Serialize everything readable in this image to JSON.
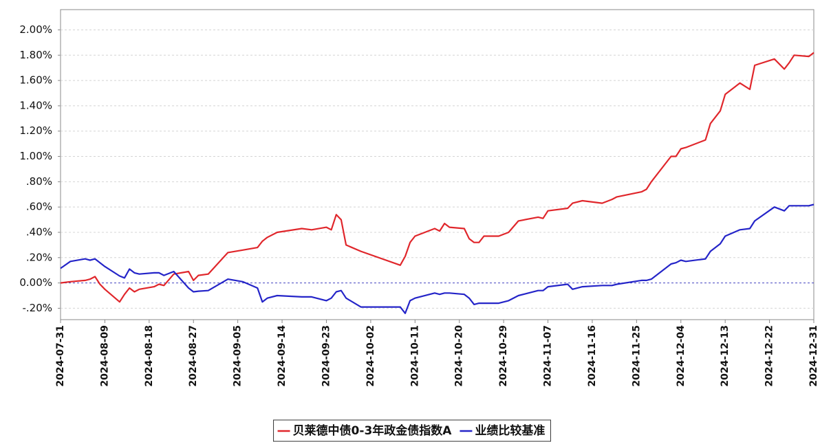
{
  "chart_data": {
    "type": "line",
    "x": [
      "2024-07-31",
      "2024-08-02",
      "2024-08-05",
      "2024-08-06",
      "2024-08-07",
      "2024-08-08",
      "2024-08-09",
      "2024-08-12",
      "2024-08-13",
      "2024-08-14",
      "2024-08-15",
      "2024-08-16",
      "2024-08-19",
      "2024-08-20",
      "2024-08-21",
      "2024-08-23",
      "2024-08-26",
      "2024-08-27",
      "2024-08-28",
      "2024-08-30",
      "2024-09-03",
      "2024-09-06",
      "2024-09-09",
      "2024-09-10",
      "2024-09-11",
      "2024-09-13",
      "2024-09-18",
      "2024-09-20",
      "2024-09-23",
      "2024-09-24",
      "2024-09-25",
      "2024-09-26",
      "2024-09-27",
      "2024-09-30",
      "2024-10-08",
      "2024-10-09",
      "2024-10-10",
      "2024-10-11",
      "2024-10-15",
      "2024-10-16",
      "2024-10-17",
      "2024-10-18",
      "2024-10-21",
      "2024-10-22",
      "2024-10-23",
      "2024-10-24",
      "2024-10-25",
      "2024-10-28",
      "2024-10-30",
      "2024-11-01",
      "2024-11-05",
      "2024-11-06",
      "2024-11-07",
      "2024-11-11",
      "2024-11-12",
      "2024-11-14",
      "2024-11-18",
      "2024-11-20",
      "2024-11-21",
      "2024-11-26",
      "2024-11-27",
      "2024-11-28",
      "2024-12-02",
      "2024-12-03",
      "2024-12-04",
      "2024-12-05",
      "2024-12-09",
      "2024-12-10",
      "2024-12-12",
      "2024-12-13",
      "2024-12-16",
      "2024-12-18",
      "2024-12-19",
      "2024-12-23",
      "2024-12-25",
      "2024-12-26",
      "2024-12-27",
      "2024-12-30",
      "2024-12-31"
    ],
    "series": [
      {
        "name": "贝莱德中债0-3年政金债指数A",
        "color": "#e0262b",
        "values": [
          0.0,
          0.01,
          0.02,
          0.03,
          0.05,
          -0.01,
          -0.05,
          -0.15,
          -0.09,
          -0.04,
          -0.07,
          -0.05,
          -0.03,
          -0.01,
          -0.02,
          0.07,
          0.09,
          0.02,
          0.06,
          0.07,
          0.24,
          0.26,
          0.28,
          0.33,
          0.36,
          0.4,
          0.43,
          0.42,
          0.44,
          0.42,
          0.54,
          0.5,
          0.3,
          0.25,
          0.14,
          0.21,
          0.32,
          0.37,
          0.43,
          0.41,
          0.47,
          0.44,
          0.43,
          0.35,
          0.32,
          0.32,
          0.37,
          0.37,
          0.4,
          0.49,
          0.52,
          0.51,
          0.57,
          0.59,
          0.63,
          0.65,
          0.63,
          0.66,
          0.68,
          0.72,
          0.74,
          0.8,
          1.0,
          1.0,
          1.06,
          1.07,
          1.13,
          1.26,
          1.36,
          1.49,
          1.58,
          1.53,
          1.72,
          1.77,
          1.69,
          1.74,
          1.8,
          1.79,
          1.82
        ]
      },
      {
        "name": "业绩比较基准",
        "color": "#2424c8",
        "values": [
          0.115,
          0.17,
          0.19,
          0.18,
          0.19,
          0.16,
          0.13,
          0.055,
          0.04,
          0.11,
          0.08,
          0.07,
          0.08,
          0.08,
          0.06,
          0.09,
          -0.04,
          -0.07,
          -0.065,
          -0.06,
          0.03,
          0.01,
          -0.04,
          -0.15,
          -0.12,
          -0.1,
          -0.11,
          -0.11,
          -0.14,
          -0.12,
          -0.07,
          -0.06,
          -0.12,
          -0.19,
          -0.19,
          -0.24,
          -0.14,
          -0.12,
          -0.08,
          -0.09,
          -0.08,
          -0.08,
          -0.09,
          -0.12,
          -0.17,
          -0.16,
          -0.16,
          -0.16,
          -0.14,
          -0.1,
          -0.06,
          -0.06,
          -0.03,
          -0.01,
          -0.05,
          -0.03,
          -0.02,
          -0.02,
          -0.01,
          0.02,
          0.02,
          0.03,
          0.15,
          0.16,
          0.18,
          0.17,
          0.19,
          0.25,
          0.31,
          0.37,
          0.42,
          0.43,
          0.49,
          0.6,
          0.57,
          0.61,
          0.61,
          0.61,
          0.62
        ]
      }
    ],
    "xlim": [
      "2024-07-31",
      "2024-12-31"
    ],
    "xticks": [
      "2024-07-31",
      "2024-08-09",
      "2024-08-18",
      "2024-08-27",
      "2024-09-05",
      "2024-09-14",
      "2024-09-23",
      "2024-10-02",
      "2024-10-11",
      "2024-10-20",
      "2024-10-29",
      "2024-11-07",
      "2024-11-16",
      "2024-11-25",
      "2024-12-04",
      "2024-12-13",
      "2024-12-22",
      "2024-12-31"
    ],
    "ylim": [
      -0.29,
      2.16
    ],
    "yticks": [
      {
        "value": -0.2,
        "label": "-.20%"
      },
      {
        "value": 0,
        "label": "0.00%"
      },
      {
        "value": 0.2,
        "label": ".20%"
      },
      {
        "value": 0.4,
        "label": ".40%"
      },
      {
        "value": 0.6,
        "label": ".60%"
      },
      {
        "value": 0.8,
        "label": ".80%"
      },
      {
        "value": 1.0,
        "label": "1.00%"
      },
      {
        "value": 1.2,
        "label": "1.20%"
      },
      {
        "value": 1.4,
        "label": "1.40%"
      },
      {
        "value": 1.6,
        "label": "1.60%"
      },
      {
        "value": 1.8,
        "label": "1.80%"
      },
      {
        "value": 2.0,
        "label": "2.00%"
      }
    ],
    "grid": true,
    "legend": "bottom"
  }
}
